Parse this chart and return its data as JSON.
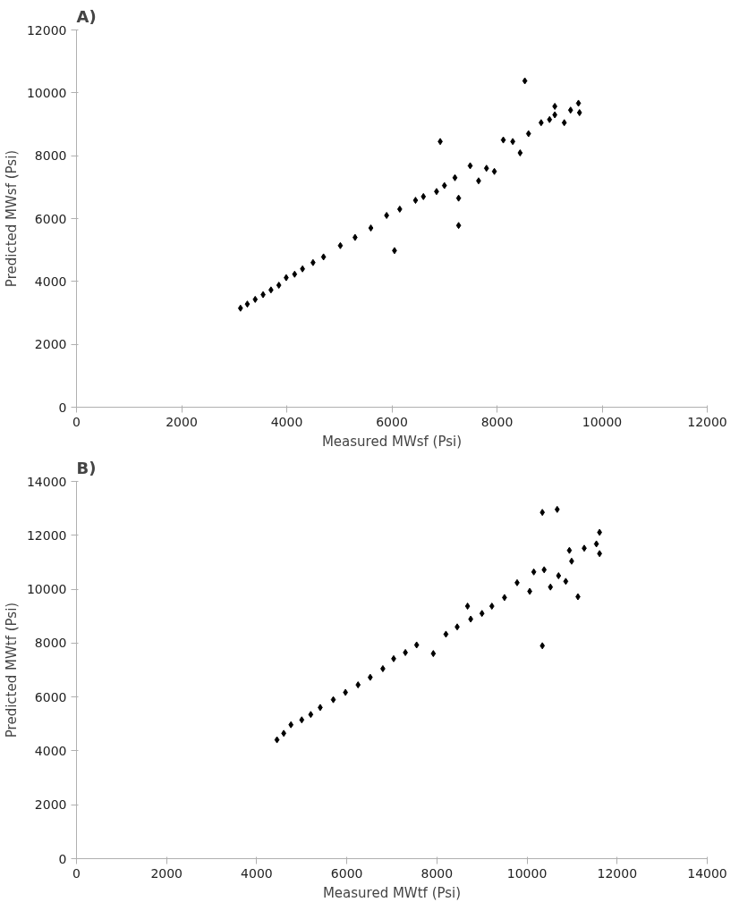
{
  "chart_data": [
    {
      "type": "scatter",
      "title": "A)",
      "xlabel": "Measured MWsf (Psi)",
      "ylabel": "Predicted MWsf (Psi)",
      "xlim": [
        0,
        12000
      ],
      "ylim": [
        0,
        12000
      ],
      "xticks": [
        0,
        2000,
        4000,
        6000,
        8000,
        10000,
        12000
      ],
      "yticks": [
        0,
        2000,
        4000,
        6000,
        8000,
        10000,
        12000
      ],
      "grid": false,
      "marker": "diamond",
      "series": [
        {
          "color": "#000000",
          "x": [
            3120,
            3250,
            3400,
            3550,
            3700,
            3850,
            3990,
            4150,
            4300,
            4500,
            4700,
            5020,
            5300,
            5600,
            5900,
            6150,
            6450,
            6600,
            6850,
            7000,
            7200,
            7490,
            7650,
            7800,
            7950,
            8120,
            8300,
            8440,
            8600,
            8840,
            9000,
            9100,
            9280,
            9400,
            9550,
            9570,
            8530,
            6920,
            7270,
            7270,
            6050,
            9100
          ],
          "values": [
            3150,
            3280,
            3430,
            3580,
            3730,
            3880,
            4120,
            4230,
            4400,
            4600,
            4780,
            5140,
            5400,
            5700,
            6100,
            6300,
            6580,
            6700,
            6860,
            7050,
            7300,
            7680,
            7200,
            7600,
            7500,
            8500,
            8450,
            8090,
            8700,
            9050,
            9150,
            9300,
            9050,
            9450,
            9670,
            9370,
            10380,
            8450,
            6650,
            5780,
            4980,
            9570
          ]
        }
      ]
    },
    {
      "type": "scatter",
      "title": "B)",
      "xlabel": "Measured MWtf (Psi)",
      "ylabel": "Predicted MWtf (Psi)",
      "xlim": [
        0,
        14000
      ],
      "ylim": [
        0,
        14000
      ],
      "xticks": [
        0,
        2000,
        4000,
        6000,
        8000,
        10000,
        12000,
        14000
      ],
      "yticks": [
        0,
        2000,
        4000,
        6000,
        8000,
        10000,
        12000,
        14000
      ],
      "grid": false,
      "marker": "diamond",
      "series": [
        {
          "color": "#000000",
          "x": [
            4450,
            4600,
            4760,
            5000,
            5200,
            5410,
            5700,
            5970,
            6250,
            6520,
            6800,
            7040,
            7300,
            7550,
            7920,
            8200,
            8450,
            8750,
            9000,
            9220,
            9500,
            9780,
            10060,
            10150,
            10380,
            10520,
            10700,
            10940,
            10990,
            11270,
            11540,
            10340,
            10670,
            10340,
            11130,
            11610,
            11610,
            8680,
            10860
          ],
          "values": [
            4410,
            4650,
            4970,
            5150,
            5350,
            5610,
            5900,
            6170,
            6450,
            6730,
            7050,
            7420,
            7650,
            7930,
            7610,
            8330,
            8600,
            8890,
            9100,
            9370,
            9690,
            10240,
            9920,
            10640,
            10720,
            10080,
            10500,
            11440,
            11040,
            11520,
            11680,
            12850,
            12960,
            7900,
            9720,
            12110,
            11320,
            9370,
            10290
          ]
        }
      ]
    }
  ]
}
